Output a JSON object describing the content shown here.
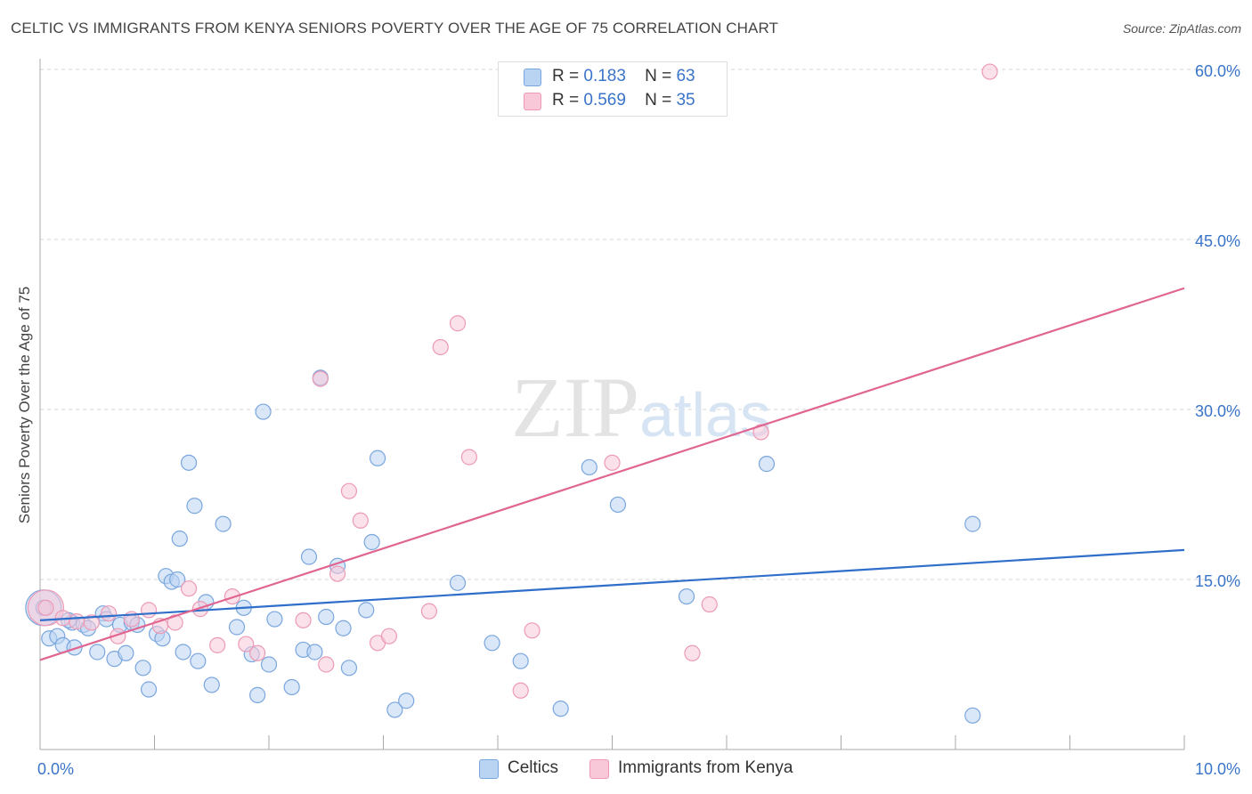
{
  "chart_data": {
    "type": "scatter",
    "title": "CELTIC VS IMMIGRANTS FROM KENYA SENIORS POVERTY OVER THE AGE OF 75 CORRELATION CHART",
    "source": "Source: ZipAtlas.com",
    "ylabel": "Seniors Poverty Over the Age of 75",
    "xlabel": "",
    "xlim": [
      0,
      10
    ],
    "ylim": [
      0,
      60
    ],
    "x_tick_labels": [
      "0.0%",
      "10.0%"
    ],
    "y_ticks": [
      15,
      30,
      45,
      60
    ],
    "y_tick_labels": [
      "15.0%",
      "30.0%",
      "45.0%",
      "60.0%"
    ],
    "grid": true,
    "watermark": "ZIPatlas",
    "legend": {
      "rows": [
        {
          "r_label": "R =",
          "r_value": "0.183",
          "n_label": "N =",
          "n_value": "63"
        },
        {
          "r_label": "R =",
          "r_value": "0.569",
          "n_label": "N =",
          "n_value": "35"
        }
      ]
    },
    "series": [
      {
        "name": "Celtics",
        "fill": "#b9d3f3",
        "stroke": "#7aa6de",
        "line_color": "#2f6fca",
        "trend": [
          [
            0,
            11.4
          ],
          [
            10,
            17.6
          ]
        ],
        "points": [
          [
            0.03,
            12.5
          ],
          [
            0.08,
            9.8
          ],
          [
            0.15,
            10.0
          ],
          [
            0.2,
            9.2
          ],
          [
            0.28,
            11.2
          ],
          [
            0.3,
            9.0
          ],
          [
            0.38,
            11.0
          ],
          [
            0.42,
            10.7
          ],
          [
            0.5,
            8.6
          ],
          [
            0.55,
            12.0
          ],
          [
            0.58,
            11.5
          ],
          [
            0.65,
            8.0
          ],
          [
            0.7,
            11.0
          ],
          [
            0.75,
            8.5
          ],
          [
            0.8,
            11.2
          ],
          [
            0.85,
            11.0
          ],
          [
            0.9,
            7.2
          ],
          [
            0.95,
            5.3
          ],
          [
            1.02,
            10.2
          ],
          [
            1.07,
            9.8
          ],
          [
            1.1,
            15.3
          ],
          [
            1.15,
            14.8
          ],
          [
            1.22,
            18.6
          ],
          [
            1.25,
            8.6
          ],
          [
            1.3,
            25.3
          ],
          [
            1.35,
            21.5
          ],
          [
            1.38,
            7.8
          ],
          [
            1.45,
            13.0
          ],
          [
            1.5,
            5.7
          ],
          [
            1.6,
            19.9
          ],
          [
            1.72,
            10.8
          ],
          [
            1.78,
            12.5
          ],
          [
            1.85,
            8.4
          ],
          [
            1.9,
            4.8
          ],
          [
            1.95,
            29.8
          ],
          [
            2.0,
            7.5
          ],
          [
            2.05,
            11.5
          ],
          [
            2.2,
            5.5
          ],
          [
            2.3,
            8.8
          ],
          [
            2.35,
            17.0
          ],
          [
            2.4,
            8.6
          ],
          [
            2.45,
            32.8
          ],
          [
            2.5,
            11.7
          ],
          [
            2.6,
            16.2
          ],
          [
            2.65,
            10.7
          ],
          [
            2.7,
            7.2
          ],
          [
            2.85,
            12.3
          ],
          [
            2.9,
            18.3
          ],
          [
            2.95,
            25.7
          ],
          [
            3.1,
            3.5
          ],
          [
            3.2,
            4.3
          ],
          [
            3.65,
            14.7
          ],
          [
            3.95,
            9.4
          ],
          [
            4.2,
            7.8
          ],
          [
            4.55,
            3.6
          ],
          [
            4.8,
            24.9
          ],
          [
            5.05,
            21.6
          ],
          [
            5.65,
            13.5
          ],
          [
            6.35,
            25.2
          ],
          [
            8.15,
            19.9
          ],
          [
            8.15,
            3.0
          ],
          [
            1.2,
            15.0
          ],
          [
            0.25,
            11.4
          ]
        ],
        "big_point": [
          0.03,
          12.5
        ]
      },
      {
        "name": "Immigrants from Kenya",
        "fill": "#f8c8d8",
        "stroke": "#ec9ab6",
        "line_color": "#e06591",
        "trend": [
          [
            0,
            7.9
          ],
          [
            10,
            40.7
          ]
        ],
        "points": [
          [
            0.05,
            12.5
          ],
          [
            0.2,
            11.6
          ],
          [
            0.32,
            11.3
          ],
          [
            0.45,
            11.2
          ],
          [
            0.6,
            12.0
          ],
          [
            0.68,
            10.0
          ],
          [
            0.8,
            11.5
          ],
          [
            0.95,
            12.3
          ],
          [
            1.05,
            10.9
          ],
          [
            1.18,
            11.2
          ],
          [
            1.3,
            14.2
          ],
          [
            1.4,
            12.4
          ],
          [
            1.55,
            9.2
          ],
          [
            1.68,
            13.5
          ],
          [
            1.8,
            9.3
          ],
          [
            1.9,
            8.5
          ],
          [
            2.3,
            11.4
          ],
          [
            2.45,
            32.7
          ],
          [
            2.5,
            7.5
          ],
          [
            2.6,
            15.5
          ],
          [
            2.7,
            22.8
          ],
          [
            2.8,
            20.2
          ],
          [
            2.95,
            9.4
          ],
          [
            3.05,
            10.0
          ],
          [
            3.4,
            12.2
          ],
          [
            3.5,
            35.5
          ],
          [
            3.65,
            37.6
          ],
          [
            3.75,
            25.8
          ],
          [
            4.2,
            5.2
          ],
          [
            4.3,
            10.5
          ],
          [
            5.0,
            25.3
          ],
          [
            5.7,
            8.5
          ],
          [
            5.85,
            12.8
          ],
          [
            6.3,
            28.0
          ],
          [
            8.3,
            59.8
          ]
        ],
        "big_point": [
          0.05,
          12.5
        ]
      }
    ]
  }
}
